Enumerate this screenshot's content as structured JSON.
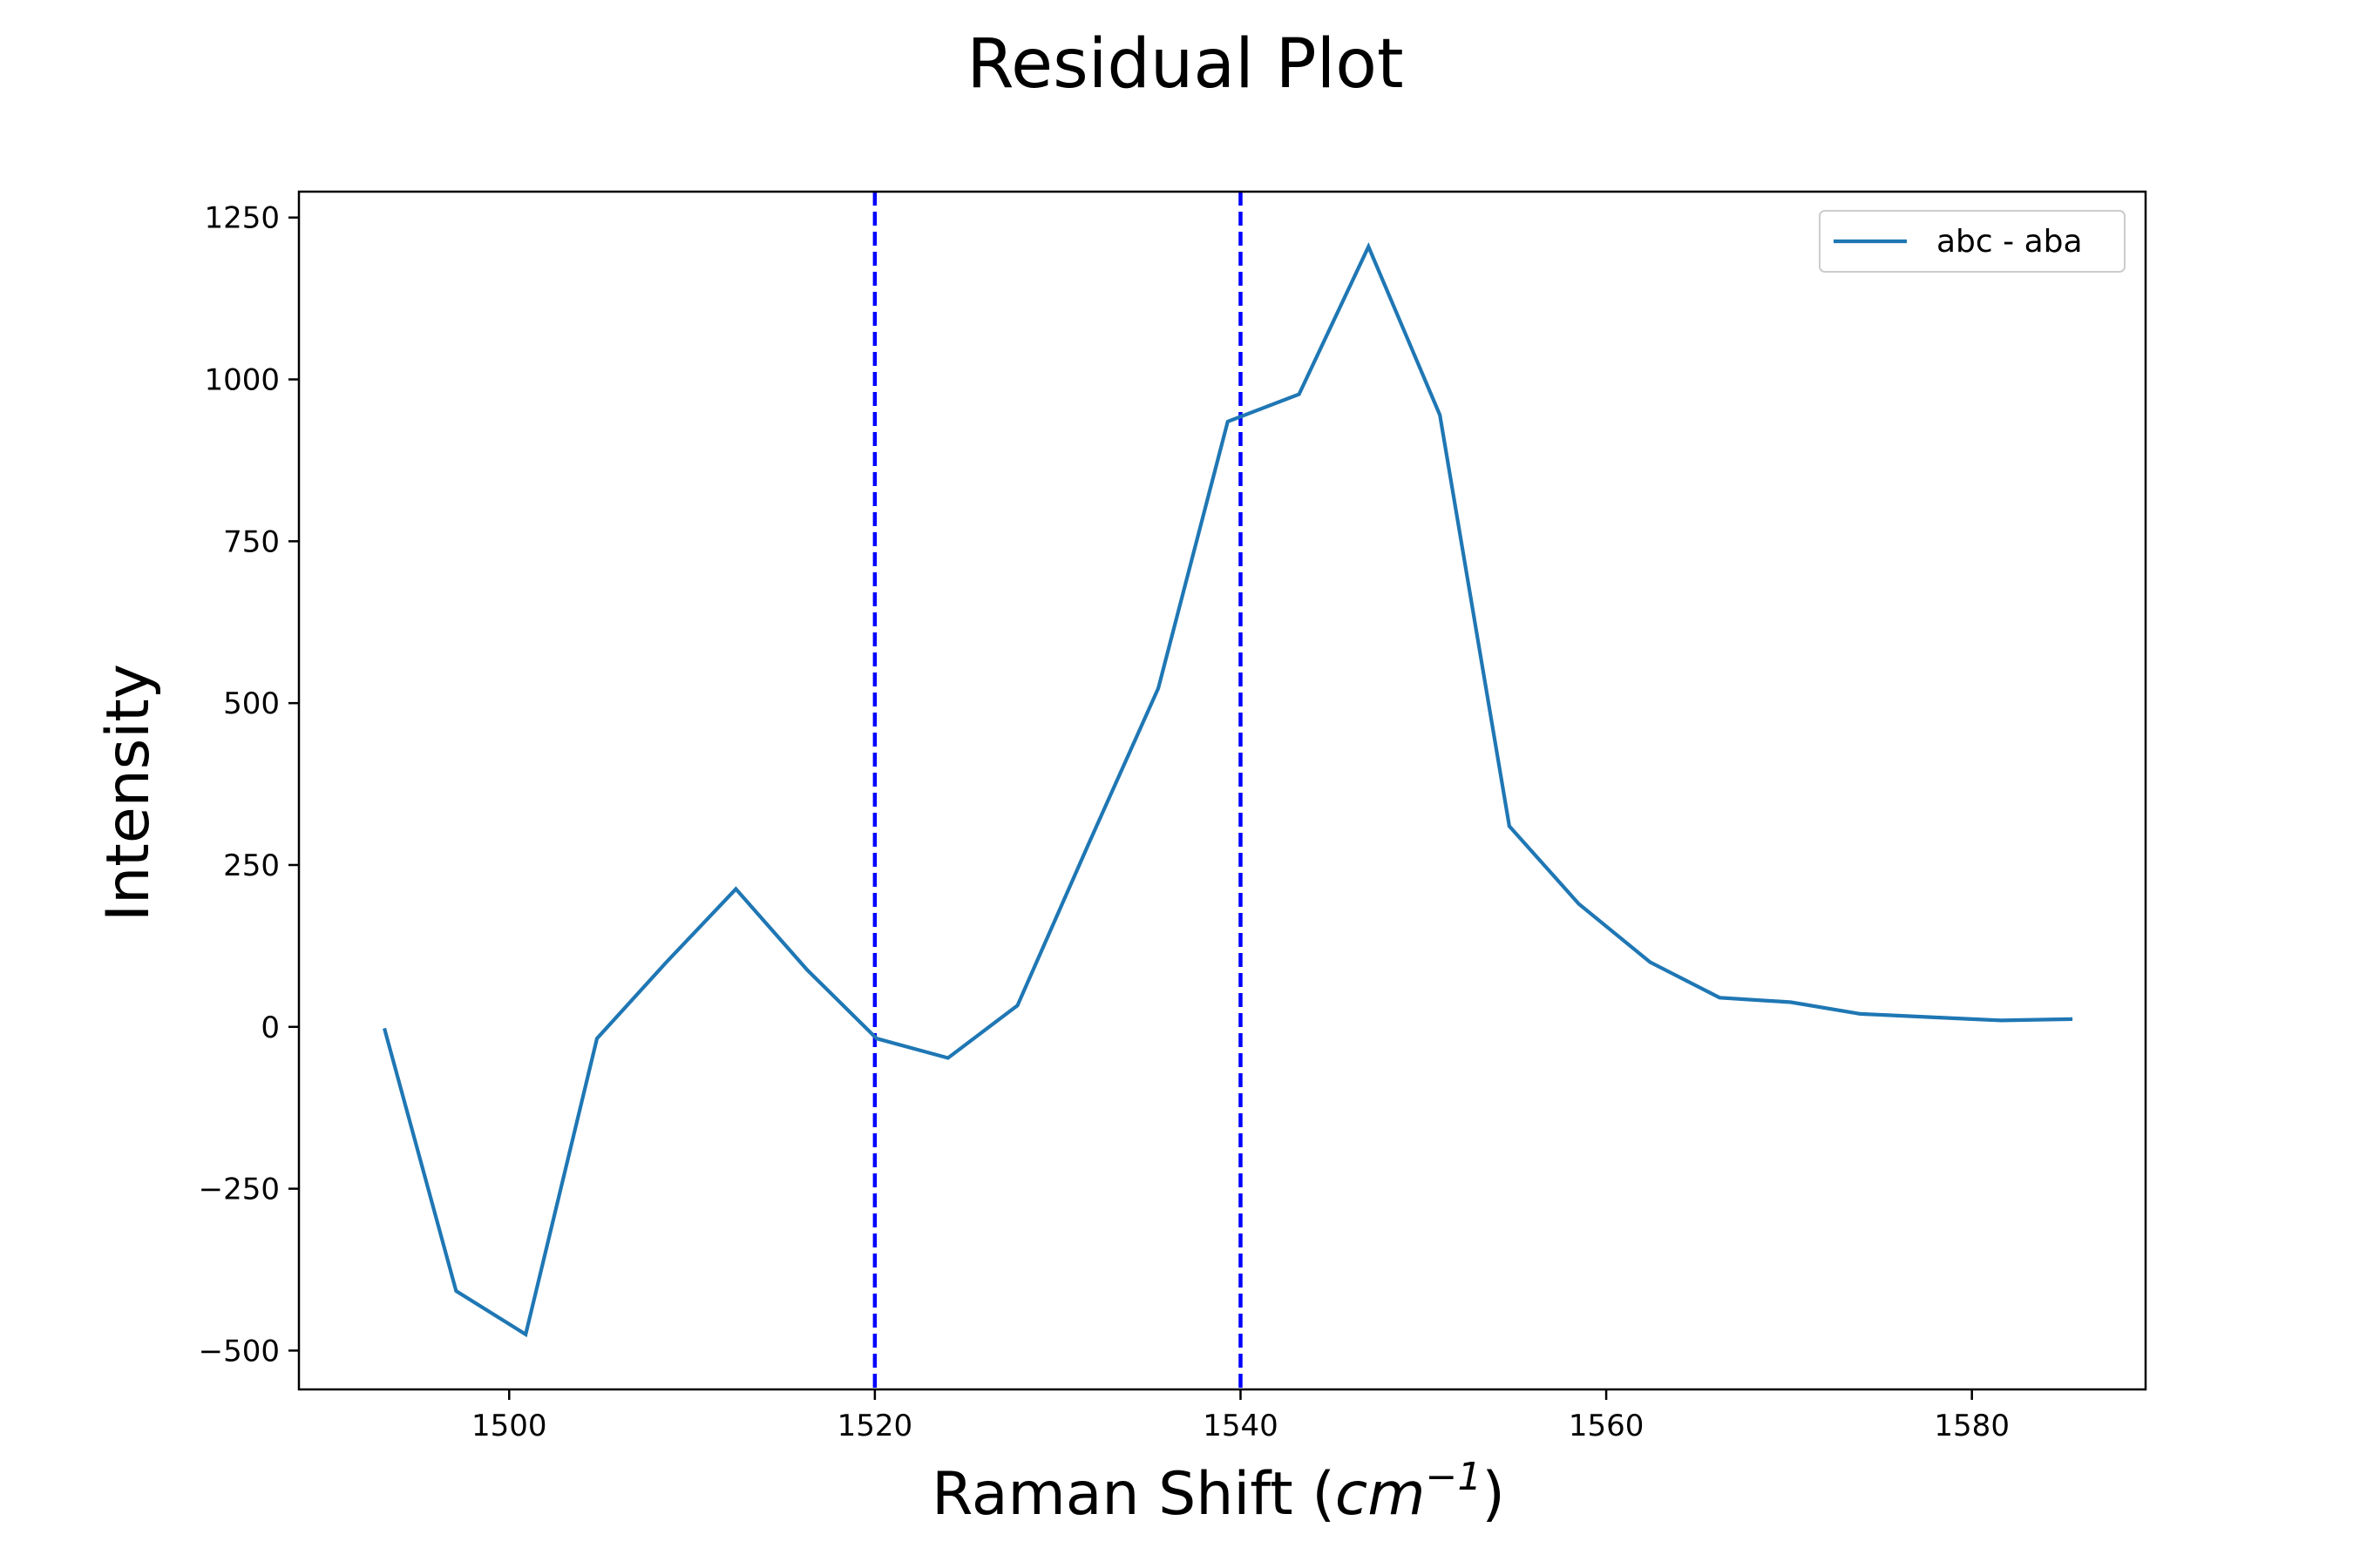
{
  "chart_data": {
    "type": "line",
    "title": "Residual Plot",
    "xlabel": "Raman Shift (cm⁻¹)",
    "xlabel_parts": {
      "prefix": "Raman Shift (",
      "var": "cm",
      "sup": "−1",
      "suffix": ")"
    },
    "ylabel": "Intensity",
    "xlim": [
      1488.5,
      1589.5
    ],
    "ylim": [
      -560,
      1290
    ],
    "x_ticks": [
      1500,
      1520,
      1540,
      1560,
      1580
    ],
    "x_tick_labels": [
      "1500",
      "1520",
      "1540",
      "1560",
      "1580"
    ],
    "y_ticks": [
      -500,
      -250,
      0,
      250,
      500,
      750,
      1000,
      1250
    ],
    "y_tick_labels": [
      "−500",
      "−250",
      "0",
      "250",
      "500",
      "750",
      "1000",
      "1250"
    ],
    "grid": false,
    "legend_position": "top-right",
    "series": [
      {
        "name": "abc - aba",
        "color": "#1f77b4",
        "x": [
          1493.2,
          1497.1,
          1500.9,
          1504.8,
          1508.6,
          1512.4,
          1516.3,
          1520.1,
          1524.0,
          1527.8,
          1531.7,
          1535.5,
          1539.3,
          1543.2,
          1547.0,
          1550.9,
          1554.7,
          1558.5,
          1562.4,
          1566.2,
          1570.1,
          1573.9,
          1577.7,
          1581.6,
          1585.4
        ],
        "y": [
          -5,
          -408,
          -475,
          -18,
          100,
          213,
          88,
          -18,
          -48,
          33,
          283,
          523,
          935,
          977,
          1205,
          945,
          310,
          190,
          100,
          45,
          38,
          20,
          15,
          10,
          12
        ]
      }
    ],
    "vertical_lines": [
      {
        "x": 1520,
        "color": "#0000ff",
        "style": "dashed"
      },
      {
        "x": 1540,
        "color": "#0000ff",
        "style": "dashed"
      }
    ]
  }
}
